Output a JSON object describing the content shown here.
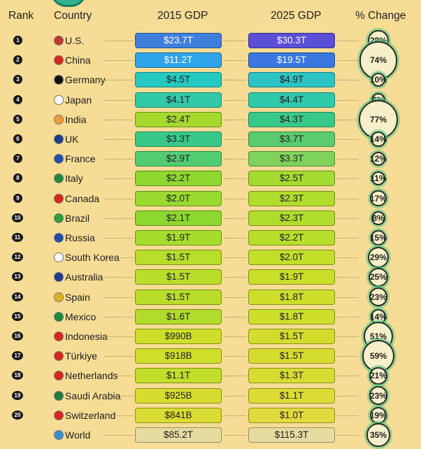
{
  "headers": {
    "rank": "Rank",
    "country": "Country",
    "gdp2015": "2015 GDP",
    "gdp2025": "2025 GDP",
    "change": "% Change"
  },
  "chart_data": {
    "type": "table",
    "columns": [
      "Rank",
      "Country",
      "2015 GDP",
      "2025 GDP",
      "% Change"
    ],
    "rows": [
      {
        "rank": "1",
        "country": "U.S.",
        "gdp2015": "$23.7T",
        "gdp2025": "$30.3T",
        "change": "28%",
        "change_value": 28
      },
      {
        "rank": "2",
        "country": "China",
        "gdp2015": "$11.2T",
        "gdp2025": "$19.5T",
        "change": "74%",
        "change_value": 74
      },
      {
        "rank": "3",
        "country": "Germany",
        "gdp2015": "$4.5T",
        "gdp2025": "$4.9T",
        "change": "10%",
        "change_value": 10
      },
      {
        "rank": "4",
        "country": "Japan",
        "gdp2015": "$4.1T",
        "gdp2025": "$4.4T",
        "change": "6%",
        "change_value": 6
      },
      {
        "rank": "5",
        "country": "India",
        "gdp2015": "$2.4T",
        "gdp2025": "$4.3T",
        "change": "77%",
        "change_value": 77
      },
      {
        "rank": "6",
        "country": "UK",
        "gdp2015": "$3.3T",
        "gdp2025": "$3.7T",
        "change": "14%",
        "change_value": 14
      },
      {
        "rank": "7",
        "country": "France",
        "gdp2015": "$2.9T",
        "gdp2025": "$3.3T",
        "change": "12%",
        "change_value": 12
      },
      {
        "rank": "8",
        "country": "Italy",
        "gdp2015": "$2.2T",
        "gdp2025": "$2.5T",
        "change": "11%",
        "change_value": 11
      },
      {
        "rank": "9",
        "country": "Canada",
        "gdp2015": "$2.0T",
        "gdp2025": "$2.3T",
        "change": "17%",
        "change_value": 17
      },
      {
        "rank": "10",
        "country": "Brazil",
        "gdp2015": "$2.1T",
        "gdp2025": "$2.3T",
        "change": "8%",
        "change_value": 8
      },
      {
        "rank": "11",
        "country": "Russia",
        "gdp2015": "$1.9T",
        "gdp2025": "$2.2T",
        "change": "15%",
        "change_value": 15
      },
      {
        "rank": "12",
        "country": "South Korea",
        "gdp2015": "$1.5T",
        "gdp2025": "$2.0T",
        "change": "29%",
        "change_value": 29
      },
      {
        "rank": "13",
        "country": "Australia",
        "gdp2015": "$1.5T",
        "gdp2025": "$1.9T",
        "change": "25%",
        "change_value": 25
      },
      {
        "rank": "14",
        "country": "Spain",
        "gdp2015": "$1.5T",
        "gdp2025": "$1.8T",
        "change": "23%",
        "change_value": 23
      },
      {
        "rank": "15",
        "country": "Mexico",
        "gdp2015": "$1.6T",
        "gdp2025": "$1.8T",
        "change": "14%",
        "change_value": 14
      },
      {
        "rank": "16",
        "country": "Indonesia",
        "gdp2015": "$990B",
        "gdp2025": "$1.5T",
        "change": "51%",
        "change_value": 51
      },
      {
        "rank": "17",
        "country": "Türkiye",
        "gdp2015": "$918B",
        "gdp2025": "$1.5T",
        "change": "59%",
        "change_value": 59
      },
      {
        "rank": "18",
        "country": "Netherlands",
        "gdp2015": "$1.1T",
        "gdp2025": "$1.3T",
        "change": "21%",
        "change_value": 21
      },
      {
        "rank": "19",
        "country": "Saudi Arabia",
        "gdp2015": "$925B",
        "gdp2025": "$1.1T",
        "change": "23%",
        "change_value": 23
      },
      {
        "rank": "20",
        "country": "Switzerland",
        "gdp2015": "$841B",
        "gdp2025": "$1.0T",
        "change": "19%",
        "change_value": 19
      },
      {
        "rank": "",
        "country": "World",
        "gdp2015": "$85.2T",
        "gdp2025": "$115.3T",
        "change": "35%",
        "change_value": 35
      }
    ]
  },
  "style": {
    "bar2015": [
      "#3f7fdc",
      "#2fa4e8",
      "#26c9c2",
      "#31c9a8",
      "#a6d92e",
      "#38c98a",
      "#52cc72",
      "#8ed82f",
      "#98da2e",
      "#8cd82f",
      "#a6dc2c",
      "#b7de2a",
      "#b9de2a",
      "#b9de2a",
      "#b2dc2b",
      "#cddf2a",
      "#cfdf2a",
      "#c1de2b",
      "#d6dd2e",
      "#dadb33",
      "#e6dca0"
    ],
    "bar2025": [
      "#5a4fd6",
      "#3a78e0",
      "#2bc3c3",
      "#2fc9ac",
      "#38c98a",
      "#5acc6f",
      "#7fd35b",
      "#a4db30",
      "#b0dd2b",
      "#b0dd2b",
      "#b7de2a",
      "#c4df2a",
      "#c9df2a",
      "#cddf2a",
      "#cddf2a",
      "#d4dd2e",
      "#d4dd2e",
      "#d8dc31",
      "#dddb36",
      "#e0db3c",
      "#e6dca0"
    ],
    "flags": [
      "#c0392b",
      "#d8261c",
      "#111111",
      "#ffffff",
      "#f19a2b",
      "#1f3b8c",
      "#2450a8",
      "#1d8a3c",
      "#d8261c",
      "#2e9e3f",
      "#1f4fa8",
      "#ffffff",
      "#1f3b8c",
      "#e1b21c",
      "#1d8a3c",
      "#d8261c",
      "#d8261c",
      "#d8261c",
      "#1d7d3a",
      "#d8261c",
      "#3a8fd0"
    ]
  }
}
